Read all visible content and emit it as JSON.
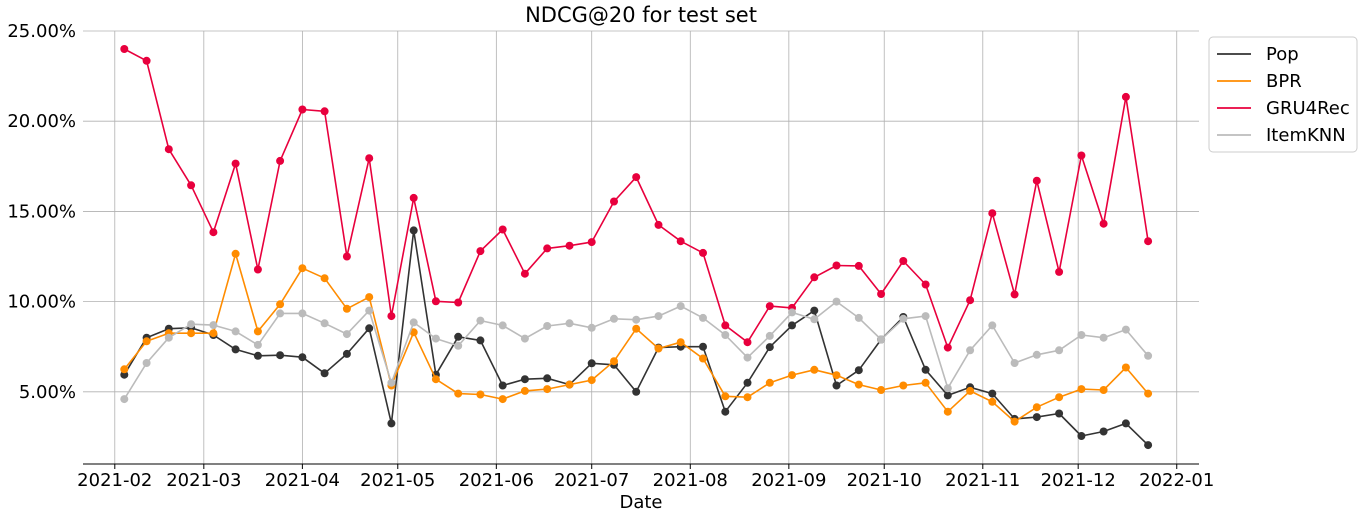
{
  "chart_data": {
    "type": "line",
    "title": "NDCG@20 for test set",
    "xlabel": "Date",
    "ylabel": "",
    "x_axis_type": "date",
    "xlim": [
      "2021-01-22",
      "2022-01-08"
    ],
    "ylim": [
      0.01,
      0.25
    ],
    "x_ticks": [
      {
        "date": "2021-02-01",
        "label": "2021-02"
      },
      {
        "date": "2021-03-01",
        "label": "2021-03"
      },
      {
        "date": "2021-04-01",
        "label": "2021-04"
      },
      {
        "date": "2021-05-01",
        "label": "2021-05"
      },
      {
        "date": "2021-06-01",
        "label": "2021-06"
      },
      {
        "date": "2021-07-01",
        "label": "2021-07"
      },
      {
        "date": "2021-08-01",
        "label": "2021-08"
      },
      {
        "date": "2021-09-01",
        "label": "2021-09"
      },
      {
        "date": "2021-10-01",
        "label": "2021-10"
      },
      {
        "date": "2021-11-01",
        "label": "2021-11"
      },
      {
        "date": "2021-12-01",
        "label": "2021-12"
      },
      {
        "date": "2022-01-01",
        "label": "2022-01"
      }
    ],
    "y_ticks": [
      {
        "value": 0.05,
        "label": "5.00%"
      },
      {
        "value": 0.1,
        "label": "10.00%"
      },
      {
        "value": 0.15,
        "label": "15.00%"
      },
      {
        "value": 0.2,
        "label": "20.00%"
      },
      {
        "value": 0.25,
        "label": "25.00%"
      }
    ],
    "grid": true,
    "legend_position": "upper-right-outside",
    "x": [
      "2021-02-04",
      "2021-02-11",
      "2021-02-18",
      "2021-02-25",
      "2021-03-04",
      "2021-03-11",
      "2021-03-18",
      "2021-03-25",
      "2021-04-01",
      "2021-04-08",
      "2021-04-15",
      "2021-04-22",
      "2021-04-29",
      "2021-05-06",
      "2021-05-13",
      "2021-05-20",
      "2021-05-27",
      "2021-06-03",
      "2021-06-10",
      "2021-06-17",
      "2021-06-24",
      "2021-07-01",
      "2021-07-08",
      "2021-07-15",
      "2021-07-22",
      "2021-07-29",
      "2021-08-05",
      "2021-08-12",
      "2021-08-19",
      "2021-08-26",
      "2021-09-02",
      "2021-09-09",
      "2021-09-16",
      "2021-09-23",
      "2021-09-30",
      "2021-10-07",
      "2021-10-14",
      "2021-10-21",
      "2021-10-28",
      "2021-11-04",
      "2021-11-11",
      "2021-11-18",
      "2021-11-25",
      "2021-12-02",
      "2021-12-09",
      "2021-12-16",
      "2021-12-23"
    ],
    "series": [
      {
        "name": "Pop",
        "color": "#333333",
        "values": [
          0.0595,
          0.08,
          0.085,
          0.0855,
          0.0815,
          0.0735,
          0.07,
          0.0703,
          0.0692,
          0.0603,
          0.071,
          0.0852,
          0.0325,
          0.1395,
          0.0595,
          0.0805,
          0.0785,
          0.0535,
          0.057,
          0.0575,
          0.054,
          0.0658,
          0.065,
          0.05,
          0.0745,
          0.075,
          0.075,
          0.039,
          0.055,
          0.0748,
          0.0868,
          0.095,
          0.0535,
          0.062,
          0.079,
          0.0915,
          0.0622,
          0.048,
          0.0525,
          0.049,
          0.035,
          0.036,
          0.038,
          0.0255,
          0.028,
          0.0325,
          0.0205
        ]
      },
      {
        "name": "BPR",
        "color": "#ff8c00",
        "values": [
          0.0625,
          0.078,
          0.0825,
          0.0825,
          0.0825,
          0.1265,
          0.0835,
          0.0985,
          0.1185,
          0.113,
          0.096,
          0.1025,
          0.0535,
          0.083,
          0.057,
          0.049,
          0.0485,
          0.046,
          0.0505,
          0.0515,
          0.054,
          0.0565,
          0.067,
          0.085,
          0.074,
          0.0775,
          0.0685,
          0.0475,
          0.047,
          0.055,
          0.0593,
          0.0622,
          0.0592,
          0.054,
          0.051,
          0.0535,
          0.055,
          0.039,
          0.0505,
          0.0445,
          0.0335,
          0.0415,
          0.047,
          0.0515,
          0.051,
          0.0635,
          0.049
        ]
      },
      {
        "name": "GRU4Rec",
        "color": "#e8003d",
        "values": [
          0.24,
          0.2335,
          0.1845,
          0.1645,
          0.1385,
          0.1765,
          0.1178,
          0.178,
          0.2065,
          0.2055,
          0.125,
          0.1795,
          0.092,
          0.1575,
          0.1002,
          0.0995,
          0.128,
          0.14,
          0.1155,
          0.1295,
          0.131,
          0.133,
          0.1555,
          0.169,
          0.1425,
          0.1335,
          0.127,
          0.0868,
          0.0775,
          0.0975,
          0.0965,
          0.1135,
          0.12,
          0.1198,
          0.1042,
          0.1225,
          0.1095,
          0.0745,
          0.1008,
          0.149,
          0.104,
          0.167,
          0.1165,
          0.181,
          0.1432,
          0.2135,
          0.1335
        ]
      },
      {
        "name": "ItemKNN",
        "color": "#bbbbbb",
        "values": [
          0.046,
          0.066,
          0.08,
          0.0875,
          0.087,
          0.0835,
          0.076,
          0.0935,
          0.0935,
          0.088,
          0.082,
          0.095,
          0.055,
          0.0885,
          0.0795,
          0.0755,
          0.0895,
          0.0868,
          0.0795,
          0.0865,
          0.088,
          0.0855,
          0.0905,
          0.09,
          0.092,
          0.0975,
          0.091,
          0.0815,
          0.069,
          0.081,
          0.094,
          0.0902,
          0.1,
          0.091,
          0.079,
          0.0905,
          0.092,
          0.052,
          0.073,
          0.0868,
          0.066,
          0.0705,
          0.073,
          0.0815,
          0.08,
          0.0845,
          0.07
        ]
      }
    ]
  }
}
